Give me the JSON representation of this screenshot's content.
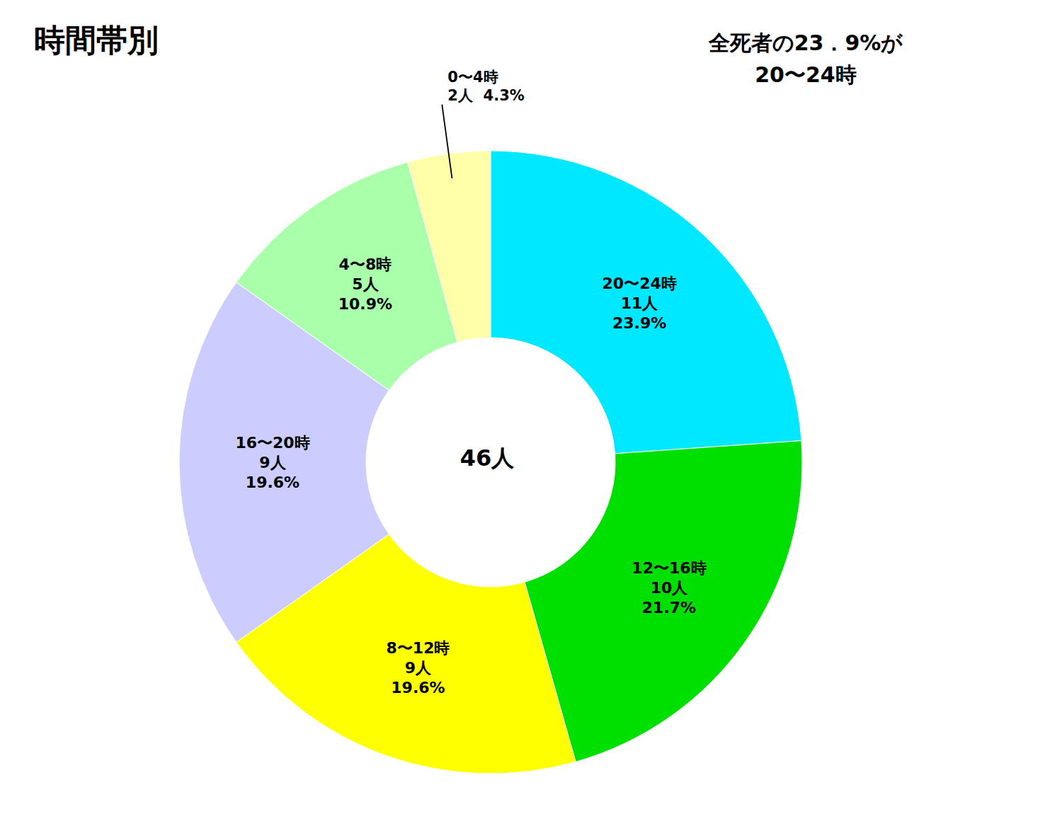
{
  "chart_data": {
    "type": "pie",
    "title": "時間帯別",
    "annotations": [
      "全死者の23．9%が\n20〜24時"
    ],
    "center_label": "46人",
    "categories": [
      "20〜24時\n11人\n23.9%",
      "12〜16時\n10人\n21.7%",
      "8〜12時\n9人\n19.6%",
      "16〜20時\n9人\n19.6%",
      "4〜8時\n5人\n10.9%",
      "0〜4時\n2人  4.3%"
    ],
    "values": [
      23.9,
      21.7,
      19.6,
      19.6,
      10.9,
      4.3
    ],
    "colors": [
      "#00e8ff",
      "#00e000",
      "#ffff00",
      "#ccccff",
      "#aaffaa",
      "#ffffaa"
    ],
    "data_labels": true
  }
}
